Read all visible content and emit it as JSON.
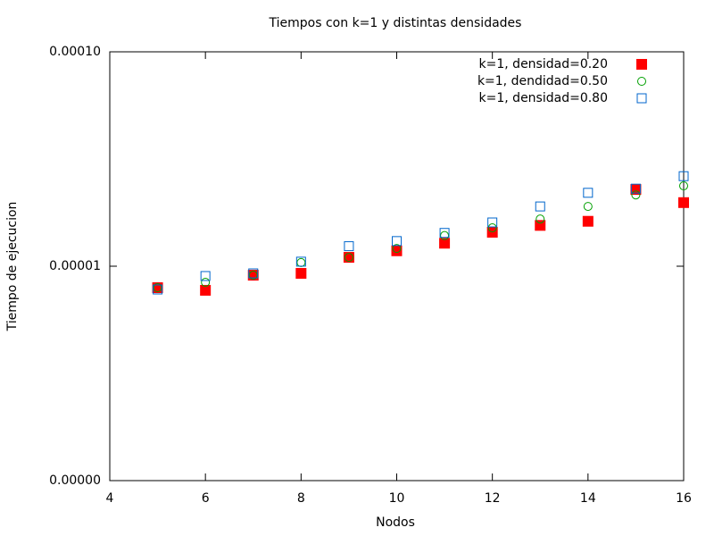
{
  "chart_data": {
    "type": "scatter",
    "title": "Tiempos con k=1 y distintas densidades",
    "x_label": "Nodos",
    "y_label": "Tiempo de ejecucion",
    "x": [
      5,
      6,
      7,
      8,
      9,
      10,
      11,
      12,
      13,
      14,
      15,
      16
    ],
    "series": [
      {
        "name": "k=1, densidad=0.20",
        "color": "#ff0000",
        "marker": "square-filled",
        "values": [
          7.94e-06,
          7.72e-06,
          9.08e-06,
          9.26e-06,
          1.1e-05,
          1.18e-05,
          1.28e-05,
          1.44e-05,
          1.55e-05,
          1.62e-05,
          2.28e-05,
          1.98e-05
        ]
      },
      {
        "name": "k=1, dendidad=0.50",
        "color": "#00a000",
        "marker": "circle-open",
        "values": [
          7.94e-06,
          8.41e-06,
          9.08e-06,
          1.04e-05,
          1.1e-05,
          1.21e-05,
          1.39e-05,
          1.51e-05,
          1.66e-05,
          1.9e-05,
          2.15e-05,
          2.37e-05
        ]
      },
      {
        "name": "k=1, densidad=0.80",
        "color": "#0066cc",
        "marker": "square-open",
        "values": [
          7.79e-06,
          9e-06,
          9.26e-06,
          1.05e-05,
          1.24e-05,
          1.31e-05,
          1.43e-05,
          1.6e-05,
          1.9e-05,
          2.2e-05,
          2.3e-05,
          2.63e-05
        ]
      }
    ],
    "xlim": [
      4,
      16
    ],
    "xticks": [
      4,
      6,
      8,
      10,
      12,
      14,
      16
    ],
    "ylim": [
      1e-06,
      0.0001
    ],
    "log_y": true,
    "yticks": [
      {
        "value": 1e-06,
        "label": "0.00000"
      },
      1e-05,
      {
        "value": 0.0001,
        "label": "0.00010"
      }
    ],
    "legend": "top-right",
    "grid": false
  }
}
